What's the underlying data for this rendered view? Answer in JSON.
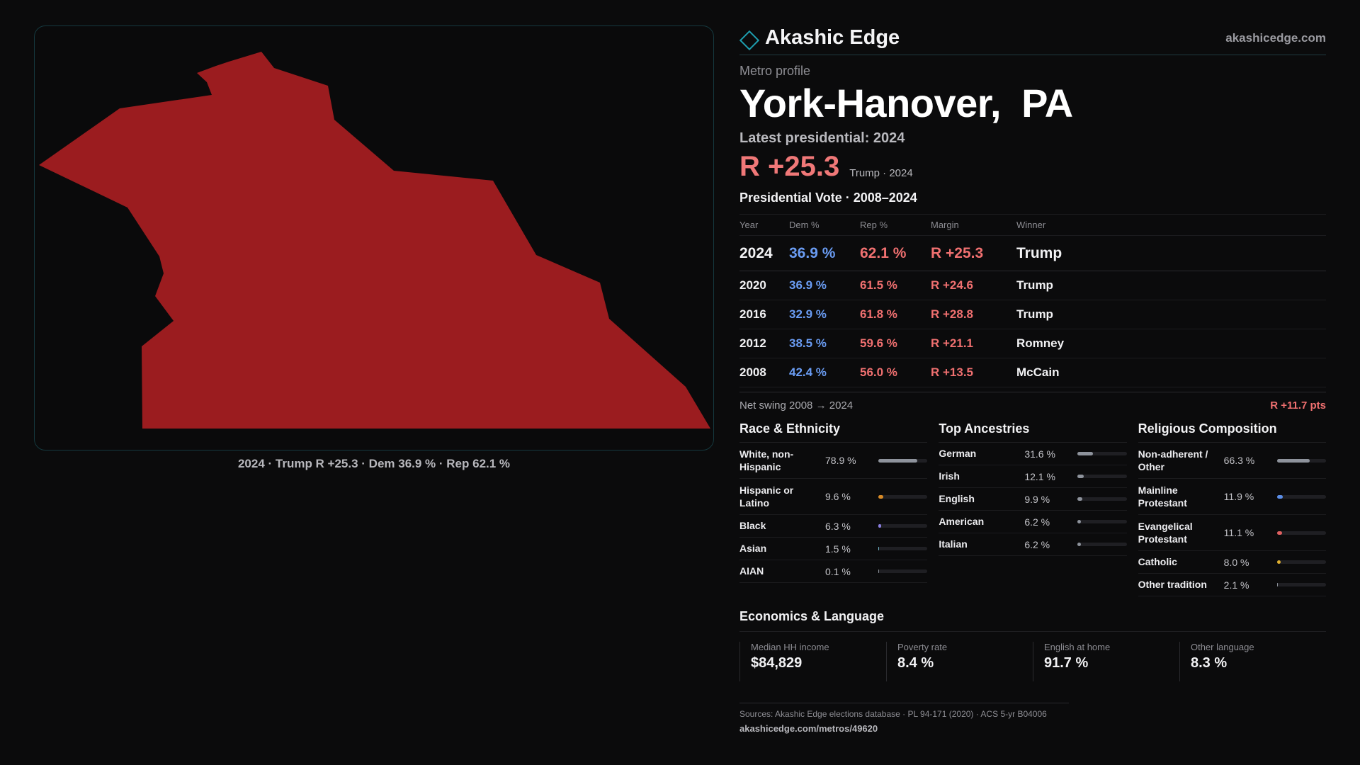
{
  "header": {
    "brand": "Akashic Edge",
    "site": "akashicedge.com"
  },
  "profile": {
    "eyebrow": "Metro profile",
    "title": "York-Hanover, PA",
    "latest_label": "Latest presidential: 2024",
    "margin": "R +25.3",
    "margin_sub": "Trump · 2024"
  },
  "map": {
    "caption": "2024 · Trump R +25.3 · Dem 36.9 % · Rep 62.1 %",
    "fill_color": "#9b1c1f"
  },
  "votes": {
    "title": "Presidential Vote · 2008–2024",
    "columns": [
      "Year",
      "Dem %",
      "Rep %",
      "Margin",
      "Winner"
    ],
    "rows": [
      {
        "year": "2024",
        "dem": "36.9 %",
        "rep": "62.1 %",
        "margin": "R +25.3",
        "winner": "Trump"
      },
      {
        "year": "2020",
        "dem": "36.9 %",
        "rep": "61.5 %",
        "margin": "R +24.6",
        "winner": "Trump"
      },
      {
        "year": "2016",
        "dem": "32.9 %",
        "rep": "61.8 %",
        "margin": "R +28.8",
        "winner": "Trump"
      },
      {
        "year": "2012",
        "dem": "38.5 %",
        "rep": "59.6 %",
        "margin": "R +21.1",
        "winner": "Romney"
      },
      {
        "year": "2008",
        "dem": "42.4 %",
        "rep": "56.0 %",
        "margin": "R +13.5",
        "winner": "McCain"
      }
    ],
    "swing_label": "Net swing 2008 → 2024",
    "swing_value": "R +11.7 pts"
  },
  "race": {
    "title": "Race & Ethnicity",
    "rows": [
      {
        "label": "White, non-Hispanic",
        "value": "78.9 %",
        "pct": 78.9,
        "color": "#8e939c"
      },
      {
        "label": "Hispanic or Latino",
        "value": "9.6 %",
        "pct": 9.6,
        "color": "#d98b26"
      },
      {
        "label": "Black",
        "value": "6.3 %",
        "pct": 6.3,
        "color": "#8a7ee0"
      },
      {
        "label": "Asian",
        "value": "1.5 %",
        "pct": 1.5,
        "color": "#6fb5c8"
      },
      {
        "label": "AIAN",
        "value": "0.1 %",
        "pct": 0.1,
        "color": "#8e939c"
      }
    ]
  },
  "ancestry": {
    "title": "Top Ancestries",
    "rows": [
      {
        "label": "German",
        "value": "31.6 %",
        "pct": 31.6,
        "color": "#8e939c"
      },
      {
        "label": "Irish",
        "value": "12.1 %",
        "pct": 12.1,
        "color": "#8e939c"
      },
      {
        "label": "English",
        "value": "9.9 %",
        "pct": 9.9,
        "color": "#8e939c"
      },
      {
        "label": "American",
        "value": "6.2 %",
        "pct": 6.2,
        "color": "#8e939c"
      },
      {
        "label": "Italian",
        "value": "6.2 %",
        "pct": 6.2,
        "color": "#8e939c"
      }
    ]
  },
  "religion": {
    "title": "Religious Composition",
    "rows": [
      {
        "label": "Non-adherent / Other",
        "value": "66.3 %",
        "pct": 66.3,
        "color": "#8e939c"
      },
      {
        "label": "Mainline Protestant",
        "value": "11.9 %",
        "pct": 11.9,
        "color": "#5b8ee8"
      },
      {
        "label": "Evangelical Protestant",
        "value": "11.1 %",
        "pct": 11.1,
        "color": "#e06060"
      },
      {
        "label": "Catholic",
        "value": "8.0 %",
        "pct": 8.0,
        "color": "#e0b030"
      },
      {
        "label": "Other tradition",
        "value": "2.1 %",
        "pct": 2.1,
        "color": "#8e939c"
      }
    ]
  },
  "economics": {
    "title": "Economics & Language",
    "cards": [
      {
        "label": "Median HH income",
        "value": "$84,829"
      },
      {
        "label": "Poverty rate",
        "value": "8.4 %"
      },
      {
        "label": "English at home",
        "value": "91.7 %"
      },
      {
        "label": "Other language",
        "value": "8.3 %"
      }
    ]
  },
  "sources": {
    "text": "Sources: Akashic Edge elections database · PL 94-171 (2020) · ACS 5-yr B04006",
    "url": "akashicedge.com/metros/49620"
  }
}
